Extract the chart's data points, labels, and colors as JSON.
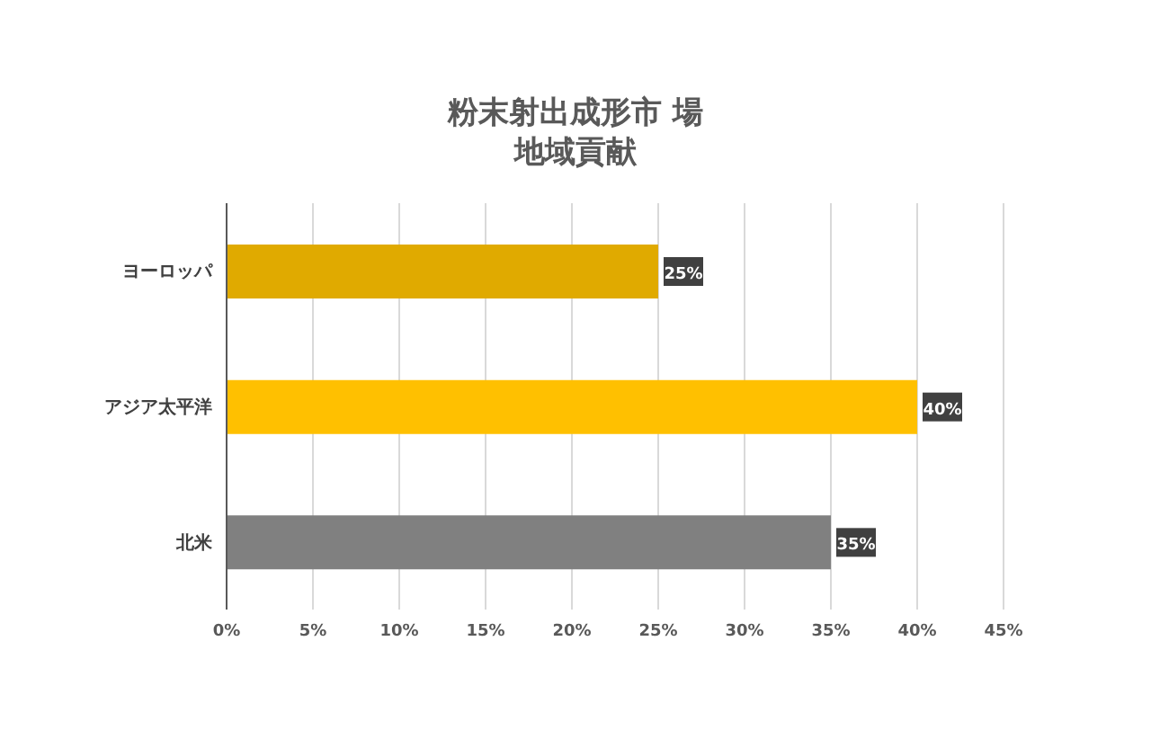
{
  "chart_data": {
    "type": "bar",
    "orientation": "horizontal",
    "title": "粉末射出成形市 場",
    "subtitle": "地域貢献",
    "categories": [
      "ヨーロッパ",
      "アジア太平洋",
      "北米"
    ],
    "values": [
      25,
      40,
      35
    ],
    "colors": [
      "#e0aa00",
      "#ffc000",
      "#808080"
    ],
    "value_labels": [
      "25%",
      "40%",
      "35%"
    ],
    "xlim": [
      0,
      45
    ],
    "xticks": [
      {
        "value": 0,
        "label": "0%"
      },
      {
        "value": 5,
        "label": "5%"
      },
      {
        "value": 10,
        "label": "10%"
      },
      {
        "value": 15,
        "label": "15%"
      },
      {
        "value": 20,
        "label": "20%"
      },
      {
        "value": 25,
        "label": "25%"
      },
      {
        "value": 30,
        "label": "30%"
      },
      {
        "value": 35,
        "label": "35%"
      },
      {
        "value": 40,
        "label": "40%"
      },
      {
        "value": 45,
        "label": "45%"
      }
    ],
    "grid": "x"
  }
}
